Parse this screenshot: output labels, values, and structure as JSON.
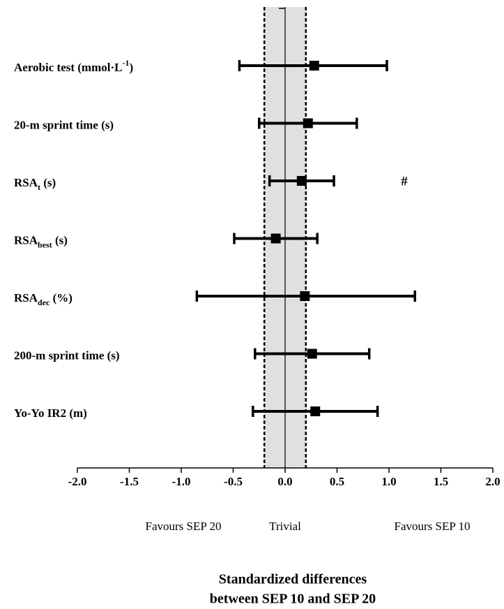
{
  "chart_data": {
    "type": "forest",
    "categories": [
      {
        "text": "Aerobic test (mmol·L",
        "sup": "-1",
        "after": ")"
      },
      {
        "text": "20-m sprint time (s)"
      },
      {
        "text": "RSA",
        "sub": "t",
        "after": " (s)"
      },
      {
        "text": "RSA",
        "sub": "best",
        "after": " (s)"
      },
      {
        "text": "RSA",
        "sub": "dec",
        "after": " (%)"
      },
      {
        "text": "200-m sprint time (s)"
      },
      {
        "text": "Yo-Yo IR2 (m)"
      }
    ],
    "values": [
      0.28,
      0.22,
      0.16,
      -0.09,
      0.19,
      0.26,
      0.29
    ],
    "lower": [
      -0.44,
      -0.25,
      -0.15,
      -0.49,
      -0.85,
      -0.29,
      -0.31
    ],
    "upper": [
      0.98,
      0.69,
      0.47,
      0.31,
      1.25,
      0.81,
      0.89
    ],
    "color": "#000000",
    "trivial_band": [
      -0.2,
      0.2
    ],
    "band_color": "#e0e0e0",
    "annotations": [
      "#"
    ],
    "xlim": [
      -2.0,
      2.0
    ],
    "xticks": [
      {
        "value": -2,
        "label": "-2.0"
      },
      {
        "value": -1.5,
        "label": "-1.5"
      },
      {
        "value": -1,
        "label": "-1.0"
      },
      {
        "value": -0.5,
        "label": "-0.5"
      },
      {
        "value": 0,
        "label": "0.0"
      },
      {
        "value": 0.5,
        "label": "0.5"
      },
      {
        "value": 1,
        "label": "1.0"
      },
      {
        "value": 1.5,
        "label": "1.5"
      },
      {
        "value": 2,
        "label": "2.0"
      }
    ],
    "region_labels": [
      "Favours SEP 20",
      "Trivial",
      "Favours SEP 10"
    ],
    "xlabel": [
      "Standardized differences",
      "between SEP 10 and SEP 20"
    ]
  }
}
